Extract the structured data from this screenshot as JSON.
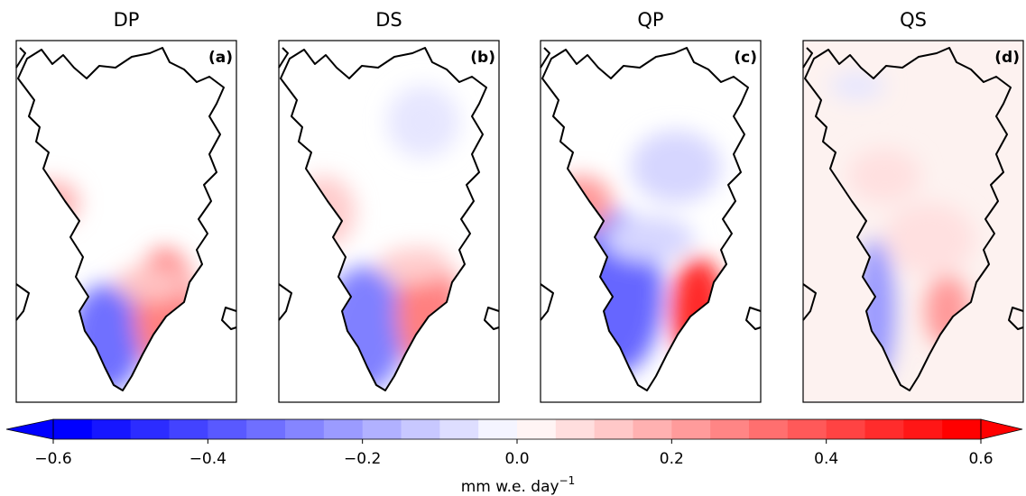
{
  "panels": [
    {
      "title": "DP",
      "label": "(a)"
    },
    {
      "title": "DS",
      "label": "(b)"
    },
    {
      "title": "QP",
      "label": "(c)"
    },
    {
      "title": "QS",
      "label": "(d)"
    }
  ],
  "colorbar": {
    "clim": [
      -0.6,
      0.6
    ],
    "n_levels": 24,
    "cmap": "bwr",
    "extend": "both",
    "ticks": [
      {
        "value": -0.6,
        "label": "−0.6"
      },
      {
        "value": -0.4,
        "label": "−0.4"
      },
      {
        "value": -0.2,
        "label": "−0.2"
      },
      {
        "value": 0,
        "label": "0.0"
      },
      0.2,
      0.4,
      0.6
    ],
    "label": "mm w.e. day",
    "label_exponent": "−1"
  }
}
